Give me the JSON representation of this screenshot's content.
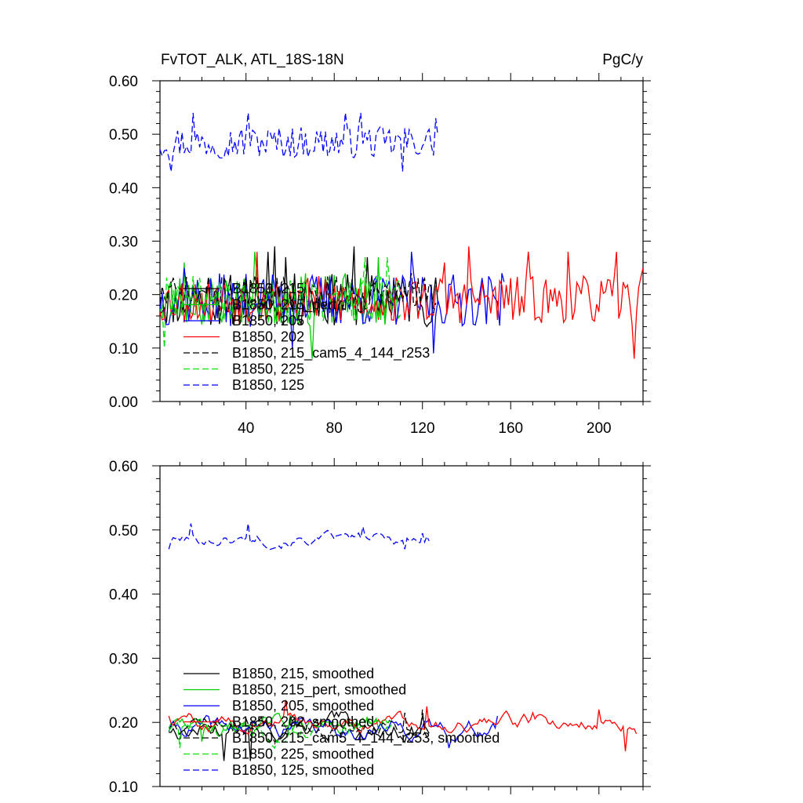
{
  "header": {
    "title": "FvTOT_ALK, ATL_18S-18N",
    "units": "PgC/y"
  },
  "chart_data": [
    {
      "type": "line",
      "panel": "top",
      "xlim": [
        1,
        220
      ],
      "ylim": [
        0.0,
        0.6
      ],
      "xticks": [
        40,
        80,
        120,
        160,
        200
      ],
      "xtick_labels": [
        "40",
        "80",
        "120",
        "160",
        "200"
      ],
      "yticks": [
        0.0,
        0.1,
        0.2,
        0.3,
        0.4,
        0.5,
        0.6
      ],
      "ytick_labels": [
        "0.00",
        "0.10",
        "0.20",
        "0.30",
        "0.40",
        "0.50",
        "0.60"
      ],
      "legend_position": "lower-left",
      "series": [
        {
          "name": "B1850, 215",
          "color": "#000000",
          "dash": "solid",
          "x_start": 1,
          "x_end": 127,
          "mean": 0.19,
          "amp": 0.05,
          "seed": 11,
          "anchors": [
            [
              50,
              0.28
            ],
            [
              53,
              0.29
            ],
            [
              58,
              0.27
            ],
            [
              89,
              0.29
            ],
            [
              95,
              0.27
            ]
          ]
        },
        {
          "name": "B1850, 215_pert",
          "color": "#00cc00",
          "dash": "solid",
          "x_start": 1,
          "x_end": 110,
          "mean": 0.19,
          "amp": 0.05,
          "seed": 23,
          "anchors": [
            [
              12,
              0.26
            ],
            [
              44,
              0.28
            ],
            [
              70,
              0.08
            ],
            [
              100,
              0.27
            ]
          ]
        },
        {
          "name": "B1850, 205",
          "color": "#0000ff",
          "dash": "solid",
          "x_start": 1,
          "x_end": 157,
          "mean": 0.19,
          "amp": 0.05,
          "seed": 37,
          "anchors": [
            [
              12,
              0.25
            ],
            [
              61,
              0.1
            ],
            [
              115,
              0.28
            ],
            [
              125,
              0.09
            ],
            [
              156,
              0.24
            ]
          ]
        },
        {
          "name": "B1850, 202",
          "color": "#ff0000",
          "dash": "solid",
          "x_start": 1,
          "x_end": 220,
          "mean": 0.19,
          "amp": 0.045,
          "seed": 53,
          "anchors": [
            [
              45,
              0.28
            ],
            [
              130,
              0.26
            ],
            [
              141,
              0.29
            ],
            [
              168,
              0.28
            ],
            [
              186,
              0.28
            ],
            [
              208,
              0.28
            ],
            [
              216,
              0.08
            ],
            [
              220,
              0.25
            ]
          ]
        },
        {
          "name": "B1850, 215_cam5_4_144_r253",
          "color": "#000000",
          "dash": "dashed",
          "x_start": 1,
          "x_end": 126,
          "mean": 0.2,
          "amp": 0.035,
          "seed": 71,
          "anchors": [
            [
              115,
              0.24
            ],
            [
              121,
              0.23
            ]
          ]
        },
        {
          "name": "B1850, 225",
          "color": "#00dd00",
          "dash": "dashed",
          "x_start": 1,
          "x_end": 110,
          "mean": 0.19,
          "amp": 0.045,
          "seed": 89,
          "anchors": [
            [
              3,
              0.1
            ],
            [
              94,
              0.27
            ],
            [
              104,
              0.27
            ]
          ]
        },
        {
          "name": "B1850, 125",
          "color": "#0000ff",
          "dash": "dashed",
          "x_start": 1,
          "x_end": 127,
          "mean": 0.485,
          "amp": 0.03,
          "seed": 97,
          "anchors": [
            [
              6,
              0.43
            ],
            [
              16,
              0.54
            ],
            [
              41,
              0.54
            ],
            [
              85,
              0.54
            ],
            [
              92,
              0.54
            ],
            [
              111,
              0.43
            ],
            [
              126,
              0.53
            ]
          ]
        }
      ]
    },
    {
      "type": "line",
      "panel": "bottom",
      "xlim": [
        1,
        220
      ],
      "ylim": [
        0.1,
        0.6
      ],
      "xticks": [
        40,
        80,
        120,
        160,
        200
      ],
      "xtick_labels": [],
      "yticks": [
        0.1,
        0.2,
        0.3,
        0.4,
        0.5,
        0.6
      ],
      "ytick_labels": [
        "0.10",
        "0.20",
        "0.30",
        "0.40",
        "0.50",
        "0.60"
      ],
      "legend_position": "lower-left",
      "series": [
        {
          "name": "B1850, 215, smoothed",
          "color": "#000000",
          "dash": "solid",
          "x_start": 5,
          "x_end": 123,
          "mean": 0.19,
          "amp": 0.015,
          "seed": 13,
          "anchors": [
            [
              30,
              0.14
            ],
            [
              42,
              0.14
            ],
            [
              60,
              0.21
            ],
            [
              120,
              0.21
            ]
          ]
        },
        {
          "name": "B1850, 215_pert, smoothed",
          "color": "#00cc00",
          "dash": "solid",
          "x_start": 5,
          "x_end": 106,
          "mean": 0.195,
          "amp": 0.012,
          "seed": 29,
          "anchors": [
            [
              20,
              0.17
            ],
            [
              60,
              0.21
            ],
            [
              100,
              0.19
            ]
          ]
        },
        {
          "name": "B1850, 205, smoothed",
          "color": "#0000ff",
          "dash": "solid",
          "x_start": 5,
          "x_end": 154,
          "mean": 0.19,
          "amp": 0.013,
          "seed": 41,
          "anchors": [
            [
              40,
              0.19
            ],
            [
              132,
              0.16
            ],
            [
              154,
              0.21
            ]
          ]
        },
        {
          "name": "B1850, 202, smoothed",
          "color": "#ff0000",
          "dash": "solid",
          "x_start": 5,
          "x_end": 217,
          "mean": 0.2,
          "amp": 0.01,
          "seed": 59,
          "anchors": [
            [
              5,
              0.21
            ],
            [
              58,
              0.235
            ],
            [
              122,
              0.225
            ],
            [
              170,
              0.215
            ],
            [
              200,
              0.22
            ],
            [
              212,
              0.155
            ],
            [
              216,
              0.19
            ]
          ]
        },
        {
          "name": "B1850, 215_cam5_4_144_r253, smoothed",
          "color": "#000000",
          "dash": "dashed",
          "x_start": 5,
          "x_end": 122,
          "mean": 0.19,
          "amp": 0.012,
          "seed": 73,
          "anchors": [
            [
              112,
              0.215
            ],
            [
              120,
              0.22
            ]
          ]
        },
        {
          "name": "B1850, 225, smoothed",
          "color": "#00dd00",
          "dash": "dashed",
          "x_start": 5,
          "x_end": 106,
          "mean": 0.19,
          "amp": 0.012,
          "seed": 83,
          "anchors": [
            [
              10,
              0.16
            ],
            [
              95,
              0.21
            ]
          ]
        },
        {
          "name": "B1850, 125, smoothed",
          "color": "#0000ff",
          "dash": "dashed",
          "x_start": 5,
          "x_end": 123,
          "mean": 0.485,
          "amp": 0.008,
          "seed": 101,
          "anchors": [
            [
              5,
              0.47
            ],
            [
              15,
              0.51
            ],
            [
              41,
              0.51
            ],
            [
              45,
              0.49
            ],
            [
              93,
              0.505
            ],
            [
              112,
              0.47
            ],
            [
              120,
              0.495
            ],
            [
              122,
              0.49
            ]
          ]
        }
      ]
    }
  ]
}
